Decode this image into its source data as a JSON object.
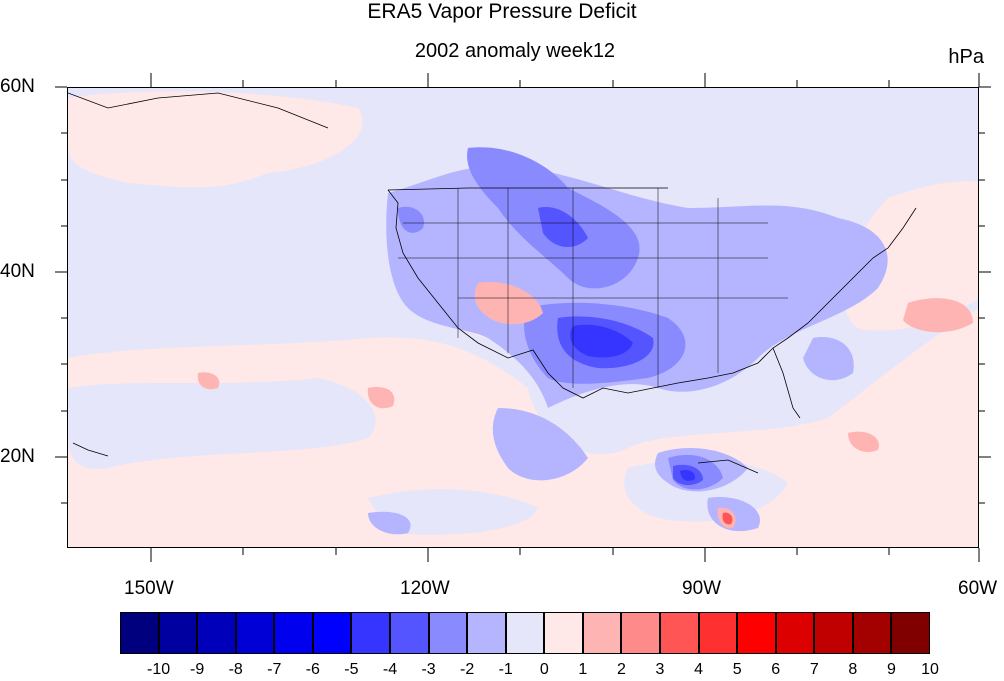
{
  "title": "ERA5 Vapor Pressure Deficit",
  "subtitle": "2002 anomaly week12",
  "units": "hPa",
  "lat_labels": [
    "60N",
    "40N",
    "20N"
  ],
  "lon_labels": [
    "150W",
    "120W",
    "90W",
    "60W"
  ],
  "colorbar": {
    "labels": [
      "-10",
      "-9",
      "-8",
      "-7",
      "-6",
      "-5",
      "-4",
      "-3",
      "-2",
      "-1",
      "0",
      "1",
      "2",
      "3",
      "4",
      "5",
      "6",
      "7",
      "8",
      "9",
      "10"
    ],
    "colors": [
      "#00007f",
      "#0000a0",
      "#0000bb",
      "#0000d6",
      "#0000ee",
      "#0000ff",
      "#3535ff",
      "#5555ff",
      "#8a8aff",
      "#b5b5ff",
      "#e6e6fa",
      "#ffe8e8",
      "#ffb4b4",
      "#ff8a8a",
      "#ff5555",
      "#ff3030",
      "#ff0000",
      "#dd0000",
      "#c00000",
      "#a30000",
      "#800000"
    ]
  },
  "background_color": "#e6e6fa"
}
